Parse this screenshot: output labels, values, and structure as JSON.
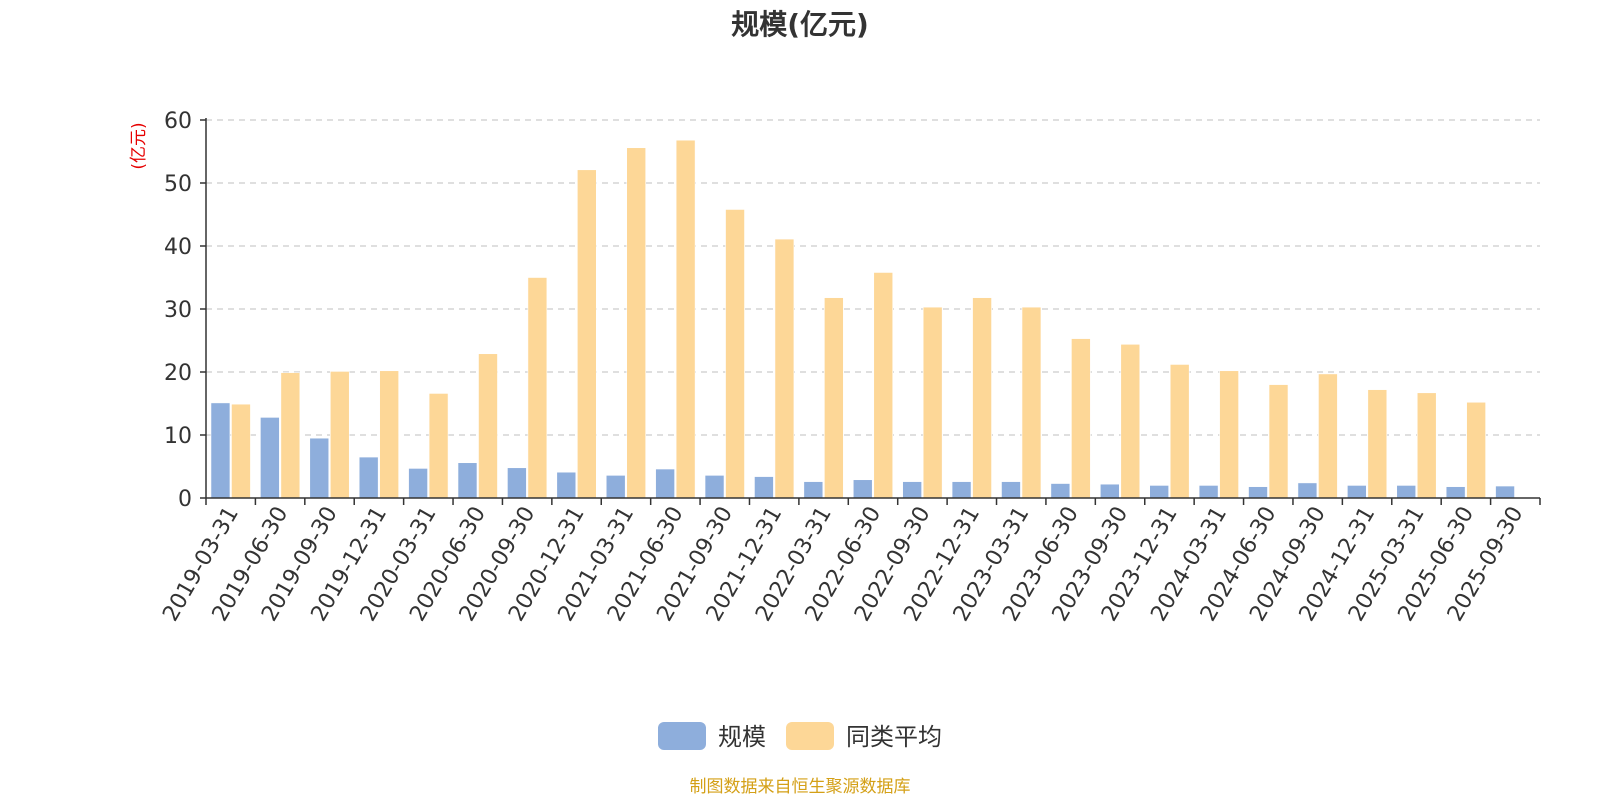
{
  "chart_data": {
    "type": "bar",
    "title": "规模(亿元)",
    "y_unit_label": "(亿元)",
    "ylim": [
      0,
      60
    ],
    "yticks": [
      0,
      10,
      20,
      30,
      40,
      50,
      60
    ],
    "grid": true,
    "legend_position": "bottom",
    "categories": [
      "2019-03-31",
      "2019-06-30",
      "2019-09-30",
      "2019-12-31",
      "2020-03-31",
      "2020-06-30",
      "2020-09-30",
      "2020-12-31",
      "2021-03-31",
      "2021-06-30",
      "2021-09-30",
      "2021-12-31",
      "2022-03-31",
      "2022-06-30",
      "2022-09-30",
      "2022-12-31",
      "2023-03-31",
      "2023-06-30",
      "2023-09-30",
      "2023-12-31",
      "2024-03-31",
      "2024-06-30",
      "2024-09-30",
      "2024-12-31",
      "2025-03-31",
      "2025-06-30",
      "2025-09-30"
    ],
    "series": [
      {
        "name": "规模",
        "color": "#8eaedc",
        "values": [
          15.1,
          12.8,
          9.5,
          6.5,
          4.7,
          5.6,
          4.8,
          4.1,
          3.6,
          4.6,
          3.6,
          3.4,
          2.6,
          2.9,
          2.6,
          2.6,
          2.6,
          2.3,
          2.2,
          2.0,
          2.0,
          1.8,
          2.4,
          2.0,
          2.0,
          1.8,
          1.9
        ]
      },
      {
        "name": "同类平均",
        "color": "#fdd797",
        "values": [
          14.9,
          19.9,
          20.1,
          20.2,
          16.6,
          22.9,
          35.0,
          52.1,
          55.6,
          56.8,
          45.8,
          41.1,
          31.8,
          35.8,
          30.3,
          31.8,
          30.3,
          25.3,
          24.4,
          21.2,
          20.2,
          18.0,
          19.7,
          17.2,
          16.7,
          15.2,
          null
        ]
      }
    ]
  },
  "footer": {
    "source": "制图数据来自恒生聚源数据库",
    "source_color": "#d4a017"
  },
  "unit_color": "#e60000"
}
